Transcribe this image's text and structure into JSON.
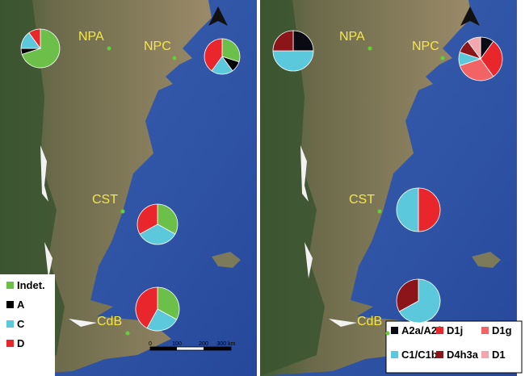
{
  "panels": [
    {
      "legend": [
        {
          "name": "Indet.",
          "color": "#6cc04a"
        },
        {
          "name": "A",
          "color": "#000000"
        },
        {
          "name": "C",
          "color": "#5bc8dc"
        },
        {
          "name": "D",
          "color": "#e8262c"
        }
      ],
      "sites": [
        {
          "label": "NPA",
          "values": [
            70,
            5,
            15,
            10
          ]
        },
        {
          "label": "NPC",
          "values": [
            30,
            10,
            20,
            40
          ]
        },
        {
          "label": "CST",
          "values": [
            33,
            0,
            34,
            33
          ]
        },
        {
          "label": "CdB",
          "values": [
            33,
            0,
            25,
            42
          ]
        }
      ],
      "scale_bar": [
        "0",
        "100",
        "200",
        "300 km"
      ]
    },
    {
      "legend": [
        {
          "name": "A2a/A2f",
          "color": "#0a0a14"
        },
        {
          "name": "D1j",
          "color": "#e8262c"
        },
        {
          "name": "D1g",
          "color": "#f26366"
        },
        {
          "name": "C1/C1b",
          "color": "#5bc8dc"
        },
        {
          "name": "D4h3a",
          "color": "#8b1518"
        },
        {
          "name": "D1",
          "color": "#f4a6ad"
        }
      ],
      "sites": [
        {
          "label": "NPA",
          "values": [
            25,
            0,
            0,
            50,
            25,
            0
          ]
        },
        {
          "label": "NPC",
          "values": [
            10,
            30,
            30,
            10,
            10,
            10
          ]
        },
        {
          "label": "CST",
          "values": [
            0,
            50,
            0,
            50,
            0,
            0
          ]
        },
        {
          "label": "CdB",
          "values": [
            0,
            0,
            0,
            67,
            33,
            0
          ]
        }
      ]
    }
  ]
}
